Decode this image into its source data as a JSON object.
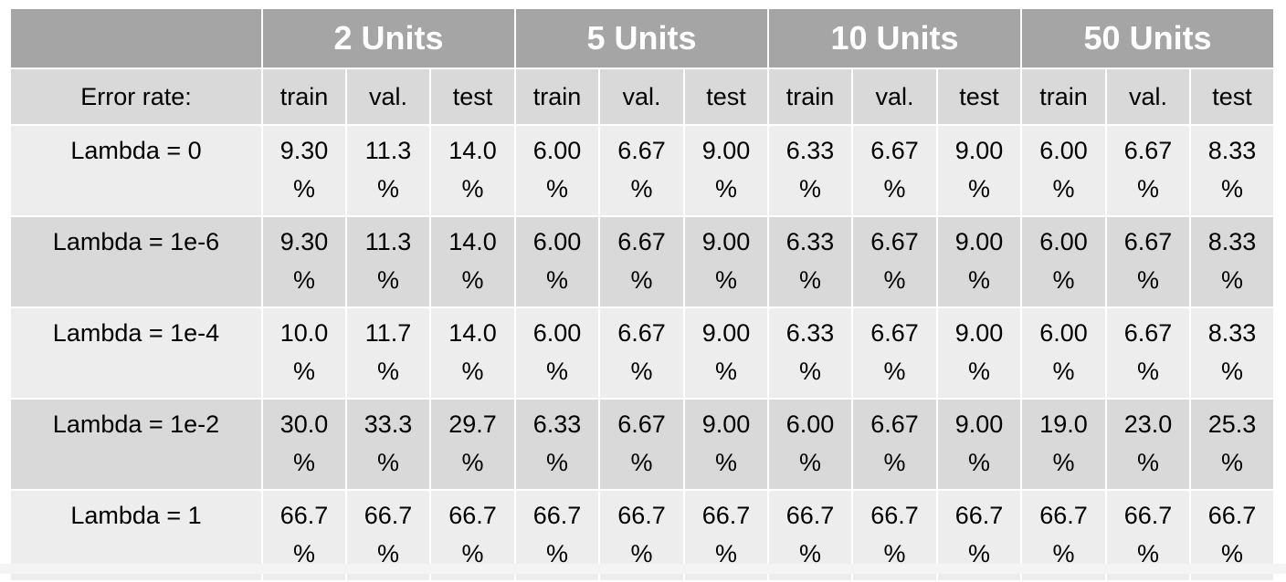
{
  "groups": [
    "2 Units",
    "5 Units",
    "10 Units",
    "50 Units"
  ],
  "corner_label": "",
  "error_rate_label": "Error rate:",
  "subcolumns": [
    "train",
    "val.",
    "test",
    "train",
    "val.",
    "test",
    "train",
    "val.",
    "test",
    "train",
    "val.",
    "test"
  ],
  "percent_symbol": "%",
  "rows": [
    {
      "label": "Lambda = 0",
      "values": [
        "9.30",
        "11.3",
        "14.0",
        "6.00",
        "6.67",
        "9.00",
        "6.33",
        "6.67",
        "9.00",
        "6.00",
        "6.67",
        "8.33"
      ]
    },
    {
      "label": "Lambda = 1e-6",
      "values": [
        "9.30",
        "11.3",
        "14.0",
        "6.00",
        "6.67",
        "9.00",
        "6.33",
        "6.67",
        "9.00",
        "6.00",
        "6.67",
        "8.33"
      ]
    },
    {
      "label": "Lambda = 1e-4",
      "values": [
        "10.0",
        "11.7",
        "14.0",
        "6.00",
        "6.67",
        "9.00",
        "6.33",
        "6.67",
        "9.00",
        "6.00",
        "6.67",
        "8.33"
      ]
    },
    {
      "label": "Lambda = 1e-2",
      "values": [
        "30.0",
        "33.3",
        "29.7",
        "6.33",
        "6.67",
        "9.00",
        "6.00",
        "6.67",
        "9.00",
        "19.0",
        "23.0",
        "25.3"
      ]
    },
    {
      "label": "Lambda = 1",
      "values": [
        "66.7",
        "66.7",
        "66.7",
        "66.7",
        "66.7",
        "66.7",
        "66.7",
        "66.7",
        "66.7",
        "66.7",
        "66.7",
        "66.7"
      ]
    }
  ],
  "colors": {
    "header_bg": "#a5a5a5",
    "header_text": "#ffffff",
    "subheader_bg": "#d9d9d9",
    "row_light": "#ededed",
    "row_dark": "#d9d9d9",
    "grid_lines": "#ffffff"
  }
}
